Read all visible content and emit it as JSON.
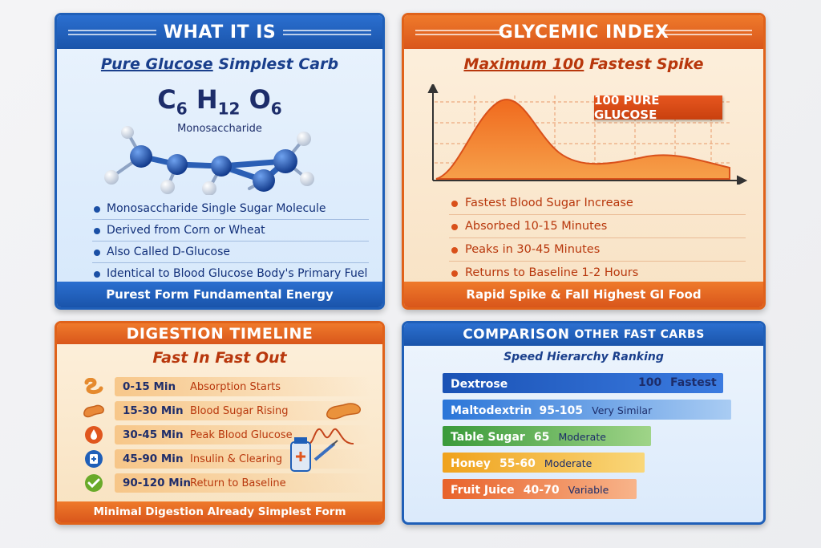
{
  "panel1": {
    "title": "WHAT IT IS",
    "subtitle_accent": "Pure Glucose",
    "subtitle_rest": "Simplest Carb",
    "formula": {
      "c": "C",
      "c_n": "6",
      "h": "H",
      "h_n": "12",
      "o": "O",
      "o_n": "6"
    },
    "molecule_label": "Monosaccharide",
    "items": [
      "Monosaccharide  Single Sugar Molecule",
      "Derived from Corn or Wheat",
      "Also Called D-Glucose",
      "Identical to Blood Glucose Body's Primary Fuel"
    ],
    "footer": "Purest Form Fundamental Energy",
    "color": "#1f5fb8"
  },
  "panel2": {
    "title": "GLYCEMIC INDEX",
    "subtitle_accent": "Maximum 100",
    "subtitle_rest": "Fastest Spike",
    "badge": "100 PURE GLUCOSE",
    "items": [
      "Fastest Blood Sugar Increase",
      "Absorbed 10-15 Minutes",
      "Peaks in 30-45 Minutes",
      "Returns to Baseline 1-2 Hours"
    ],
    "footer": "Rapid Spike & Fall  Highest GI Food",
    "color": "#e0621a"
  },
  "panel3": {
    "title": "DIGESTION TIMELINE",
    "subtitle": "Fast In Fast Out",
    "rows": [
      {
        "time": "0-15 Min",
        "desc": "Absorption Starts",
        "icon": "intestine-icon"
      },
      {
        "time": "15-30 Min",
        "desc": "Blood Sugar Rising",
        "icon": "pancreas-icon"
      },
      {
        "time": "30-45 Min",
        "desc": "Peak Blood Glucose",
        "icon": "blood-drop-icon"
      },
      {
        "time": "45-90 Min",
        "desc": "Insulin & Clearing",
        "icon": "medical-cross-icon"
      },
      {
        "time": "90-120 Min",
        "desc": "Return to Baseline",
        "icon": "checkmark-icon"
      }
    ],
    "footer": "Minimal Digestion Already Simplest Form"
  },
  "panel4": {
    "title": "COMPARISON",
    "title_small": "OTHER FAST CARBS",
    "subtitle": "Speed Hierarchy Ranking",
    "rows": [
      {
        "name": "Dextrose",
        "value": "100",
        "desc": "Fastest",
        "color": "#1f5fc4"
      },
      {
        "name": "Maltodextrin",
        "value": "95-105",
        "desc": "Very Similar",
        "color": "#2a86e0"
      },
      {
        "name": "Table Sugar",
        "value": "65",
        "desc": "Moderate",
        "color": "#3a9a3a"
      },
      {
        "name": "Honey",
        "value": "55-60",
        "desc": "Moderate",
        "color": "#f0a21c"
      },
      {
        "name": "Fruit Juice",
        "value": "40-70",
        "desc": "Variable",
        "color": "#e8622a"
      }
    ]
  }
}
